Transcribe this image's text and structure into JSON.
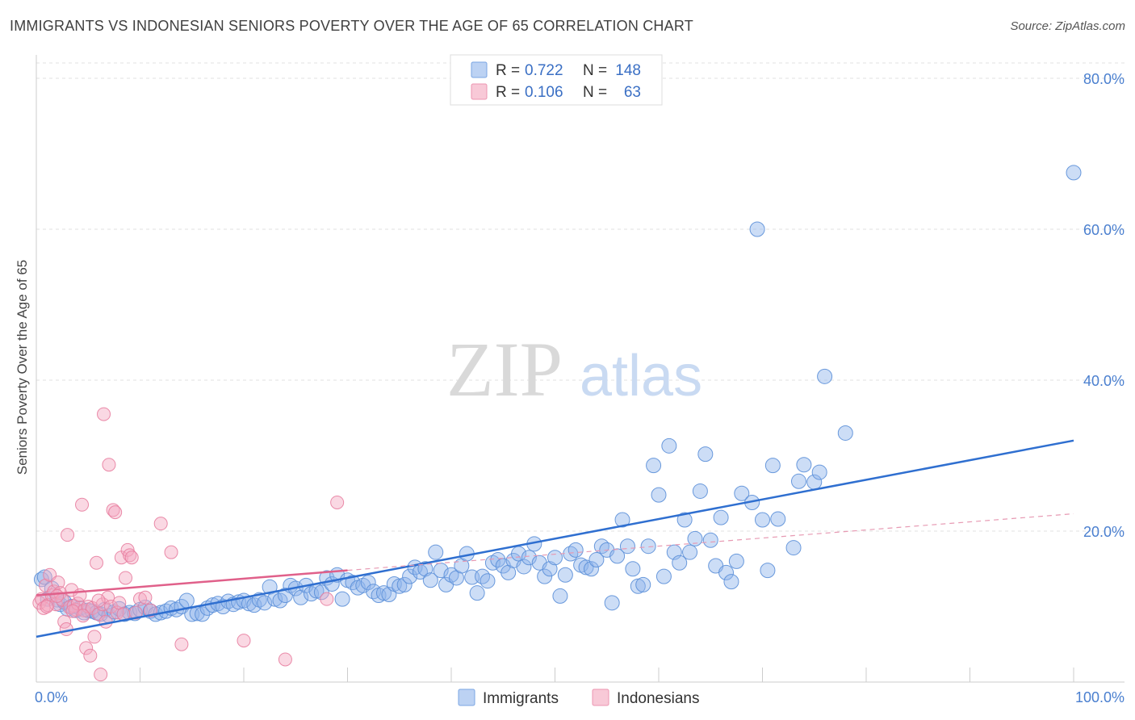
{
  "header": {
    "title": "IMMIGRANTS VS INDONESIAN SENIORS POVERTY OVER THE AGE OF 65 CORRELATION CHART",
    "source": "Source: ZipAtlas.com"
  },
  "watermark": {
    "zip": "ZIP",
    "atlas": "atlas"
  },
  "legend_top": [
    {
      "r_label": "R = ",
      "r_value": "0.722",
      "n_label": "N = ",
      "n_value": "148",
      "color": "#8fb4ea"
    },
    {
      "r_label": "R = ",
      "r_value": "0.106",
      "n_label": "N = ",
      "n_value": "63",
      "color": "#f4a9c0"
    }
  ],
  "chart_data": {
    "type": "scatter",
    "title": "IMMIGRANTS VS INDONESIAN SENIORS POVERTY OVER THE AGE OF 65 CORRELATION CHART",
    "xlabel": "",
    "ylabel": "Seniors Poverty Over the Age of 65",
    "xlim": [
      0,
      100
    ],
    "ylim": [
      0,
      80
    ],
    "x_tick_labels": [
      "0.0%",
      "100.0%"
    ],
    "y_ticks": [
      20,
      40,
      60,
      80
    ],
    "y_tick_labels": [
      "20.0%",
      "40.0%",
      "60.0%",
      "80.0%"
    ],
    "grid": true,
    "legend_placement": "bottom",
    "series": [
      {
        "name": "Immigrants",
        "color": "#8fb4ea",
        "edge": "#5b8fd8",
        "trend": {
          "x": [
            0,
            100
          ],
          "y": [
            6.0,
            32.0
          ],
          "color": "#2f6fd0"
        },
        "points": [
          [
            0.5,
            13.6
          ],
          [
            0.8,
            13.9
          ],
          [
            1.1,
            11.0
          ],
          [
            1.5,
            12.4
          ],
          [
            2.0,
            10.9
          ],
          [
            2.3,
            10.3
          ],
          [
            2.7,
            10.6
          ],
          [
            3.0,
            9.7
          ],
          [
            3.4,
            10.0
          ],
          [
            3.8,
            9.5
          ],
          [
            4.2,
            9.8
          ],
          [
            4.6,
            9.2
          ],
          [
            5.0,
            9.5
          ],
          [
            5.4,
            9.4
          ],
          [
            5.8,
            9.2
          ],
          [
            6.2,
            9.0
          ],
          [
            6.6,
            9.6
          ],
          [
            7.0,
            8.8
          ],
          [
            7.5,
            9.3
          ],
          [
            8.0,
            9.7
          ],
          [
            8.5,
            9.0
          ],
          [
            9.0,
            9.2
          ],
          [
            9.5,
            9.1
          ],
          [
            10.0,
            9.6
          ],
          [
            10.5,
            9.9
          ],
          [
            11.0,
            9.4
          ],
          [
            11.5,
            9.0
          ],
          [
            12.0,
            9.2
          ],
          [
            12.5,
            9.4
          ],
          [
            13.0,
            9.8
          ],
          [
            13.5,
            9.6
          ],
          [
            14.0,
            10.0
          ],
          [
            14.5,
            10.8
          ],
          [
            15.0,
            9.0
          ],
          [
            15.5,
            9.1
          ],
          [
            16.0,
            9.0
          ],
          [
            16.5,
            9.8
          ],
          [
            17.0,
            10.2
          ],
          [
            17.5,
            10.4
          ],
          [
            18.0,
            10.0
          ],
          [
            18.5,
            10.7
          ],
          [
            19.0,
            10.3
          ],
          [
            19.5,
            10.6
          ],
          [
            20.0,
            10.8
          ],
          [
            20.5,
            10.4
          ],
          [
            21.0,
            10.2
          ],
          [
            21.5,
            10.9
          ],
          [
            22.0,
            10.5
          ],
          [
            22.5,
            12.6
          ],
          [
            23.0,
            11.0
          ],
          [
            23.5,
            10.8
          ],
          [
            24.0,
            11.5
          ],
          [
            24.5,
            12.8
          ],
          [
            25.0,
            12.4
          ],
          [
            25.5,
            11.2
          ],
          [
            26.0,
            12.8
          ],
          [
            26.5,
            11.7
          ],
          [
            27.0,
            12.1
          ],
          [
            27.5,
            11.9
          ],
          [
            28.0,
            13.8
          ],
          [
            28.5,
            13.0
          ],
          [
            29.0,
            14.2
          ],
          [
            29.5,
            11.0
          ],
          [
            30.0,
            13.5
          ],
          [
            30.5,
            13.2
          ],
          [
            31.0,
            12.5
          ],
          [
            31.5,
            12.8
          ],
          [
            32.0,
            13.2
          ],
          [
            32.5,
            12.0
          ],
          [
            33.0,
            11.5
          ],
          [
            33.5,
            11.8
          ],
          [
            34.0,
            11.6
          ],
          [
            34.5,
            13.0
          ],
          [
            35.0,
            12.7
          ],
          [
            35.5,
            12.9
          ],
          [
            36.0,
            14.0
          ],
          [
            36.5,
            15.2
          ],
          [
            37.0,
            14.6
          ],
          [
            37.5,
            15.0
          ],
          [
            38.0,
            13.5
          ],
          [
            38.5,
            17.2
          ],
          [
            39.0,
            14.8
          ],
          [
            39.5,
            12.9
          ],
          [
            40.0,
            14.2
          ],
          [
            40.5,
            13.8
          ],
          [
            41.0,
            15.4
          ],
          [
            41.5,
            17.0
          ],
          [
            42.0,
            13.9
          ],
          [
            42.5,
            11.8
          ],
          [
            43.0,
            14.0
          ],
          [
            43.5,
            13.4
          ],
          [
            44.0,
            15.8
          ],
          [
            44.5,
            16.2
          ],
          [
            45.0,
            15.4
          ],
          [
            45.5,
            14.5
          ],
          [
            46.0,
            16.1
          ],
          [
            46.5,
            17.0
          ],
          [
            47.0,
            15.3
          ],
          [
            47.5,
            16.5
          ],
          [
            48.0,
            18.3
          ],
          [
            48.5,
            15.8
          ],
          [
            49.0,
            14.0
          ],
          [
            49.5,
            15.0
          ],
          [
            50.0,
            16.5
          ],
          [
            50.5,
            11.4
          ],
          [
            51.0,
            14.2
          ],
          [
            51.5,
            17.0
          ],
          [
            52.0,
            17.5
          ],
          [
            52.5,
            15.5
          ],
          [
            53.0,
            15.2
          ],
          [
            53.5,
            15.0
          ],
          [
            54.0,
            16.2
          ],
          [
            54.5,
            18.0
          ],
          [
            55.0,
            17.5
          ],
          [
            55.5,
            10.5
          ],
          [
            56.0,
            16.7
          ],
          [
            56.5,
            21.5
          ],
          [
            57.0,
            18.0
          ],
          [
            57.5,
            15.0
          ],
          [
            58.0,
            12.7
          ],
          [
            58.5,
            12.9
          ],
          [
            59.0,
            18.0
          ],
          [
            59.5,
            28.7
          ],
          [
            60.0,
            24.8
          ],
          [
            60.5,
            14.0
          ],
          [
            61.0,
            31.3
          ],
          [
            61.5,
            17.2
          ],
          [
            62.0,
            15.8
          ],
          [
            62.5,
            21.5
          ],
          [
            63.0,
            17.2
          ],
          [
            63.5,
            19.0
          ],
          [
            64.0,
            25.3
          ],
          [
            64.5,
            30.2
          ],
          [
            65.0,
            18.8
          ],
          [
            65.5,
            15.4
          ],
          [
            66.0,
            21.8
          ],
          [
            66.5,
            14.5
          ],
          [
            67.0,
            13.3
          ],
          [
            67.5,
            16.0
          ],
          [
            68.0,
            25.0
          ],
          [
            69.0,
            23.8
          ],
          [
            69.5,
            60.0
          ],
          [
            70.0,
            21.5
          ],
          [
            70.5,
            14.8
          ],
          [
            71.0,
            28.7
          ],
          [
            71.5,
            21.6
          ],
          [
            73.0,
            17.8
          ],
          [
            73.5,
            26.6
          ],
          [
            74.0,
            28.8
          ],
          [
            75.0,
            26.5
          ],
          [
            75.5,
            27.8
          ],
          [
            76.0,
            40.5
          ],
          [
            78.0,
            33.0
          ],
          [
            100.0,
            67.5
          ]
        ]
      },
      {
        "name": "Indonesians",
        "color": "#f4a9c0",
        "edge": "#e87ea0",
        "trend": {
          "x": [
            0,
            30
          ],
          "y": [
            11.5,
            14.8
          ],
          "color": "#e0608a"
        },
        "trend_dashed": {
          "x": [
            30,
            100
          ],
          "y": [
            14.8,
            22.3
          ],
          "color": "#e79ab3"
        },
        "points": [
          [
            0.3,
            10.5
          ],
          [
            0.5,
            11.0
          ],
          [
            0.7,
            9.8
          ],
          [
            0.9,
            12.8
          ],
          [
            1.1,
            10.2
          ],
          [
            1.3,
            14.2
          ],
          [
            1.5,
            11.5
          ],
          [
            1.7,
            12.0
          ],
          [
            1.9,
            10.3
          ],
          [
            2.1,
            13.2
          ],
          [
            2.3,
            11.8
          ],
          [
            2.5,
            10.9
          ],
          [
            2.7,
            8.0
          ],
          [
            2.9,
            7.0
          ],
          [
            3.0,
            19.5
          ],
          [
            3.2,
            9.9
          ],
          [
            3.4,
            12.2
          ],
          [
            3.6,
            10.1
          ],
          [
            3.8,
            9.6
          ],
          [
            4.0,
            10.4
          ],
          [
            4.2,
            11.5
          ],
          [
            4.4,
            23.5
          ],
          [
            4.6,
            9.5
          ],
          [
            4.8,
            4.5
          ],
          [
            5.0,
            10.0
          ],
          [
            5.2,
            3.5
          ],
          [
            5.4,
            9.8
          ],
          [
            5.6,
            6.0
          ],
          [
            5.8,
            15.8
          ],
          [
            6.0,
            9.0
          ],
          [
            6.2,
            1.0
          ],
          [
            6.4,
            10.3
          ],
          [
            6.5,
            35.5
          ],
          [
            6.7,
            8.0
          ],
          [
            6.9,
            11.2
          ],
          [
            7.0,
            28.8
          ],
          [
            7.2,
            10.0
          ],
          [
            7.4,
            22.8
          ],
          [
            7.6,
            22.5
          ],
          [
            7.8,
            9.2
          ],
          [
            8.0,
            10.5
          ],
          [
            8.2,
            16.5
          ],
          [
            8.4,
            9.0
          ],
          [
            8.6,
            13.8
          ],
          [
            8.8,
            17.5
          ],
          [
            9.0,
            16.8
          ],
          [
            9.2,
            16.5
          ],
          [
            9.6,
            9.2
          ],
          [
            10.0,
            11.0
          ],
          [
            10.5,
            11.2
          ],
          [
            11.0,
            9.5
          ],
          [
            12.0,
            21.0
          ],
          [
            13.0,
            17.2
          ],
          [
            14.0,
            5.0
          ],
          [
            20.0,
            5.5
          ],
          [
            24.0,
            3.0
          ],
          [
            28.0,
            11.0
          ],
          [
            29.0,
            23.8
          ],
          [
            1.0,
            10.0
          ],
          [
            2.0,
            11.4
          ],
          [
            3.5,
            9.4
          ],
          [
            4.5,
            8.8
          ],
          [
            6.0,
            10.8
          ]
        ]
      }
    ]
  },
  "bottom_legend": [
    "Immigrants",
    "Indonesians"
  ]
}
